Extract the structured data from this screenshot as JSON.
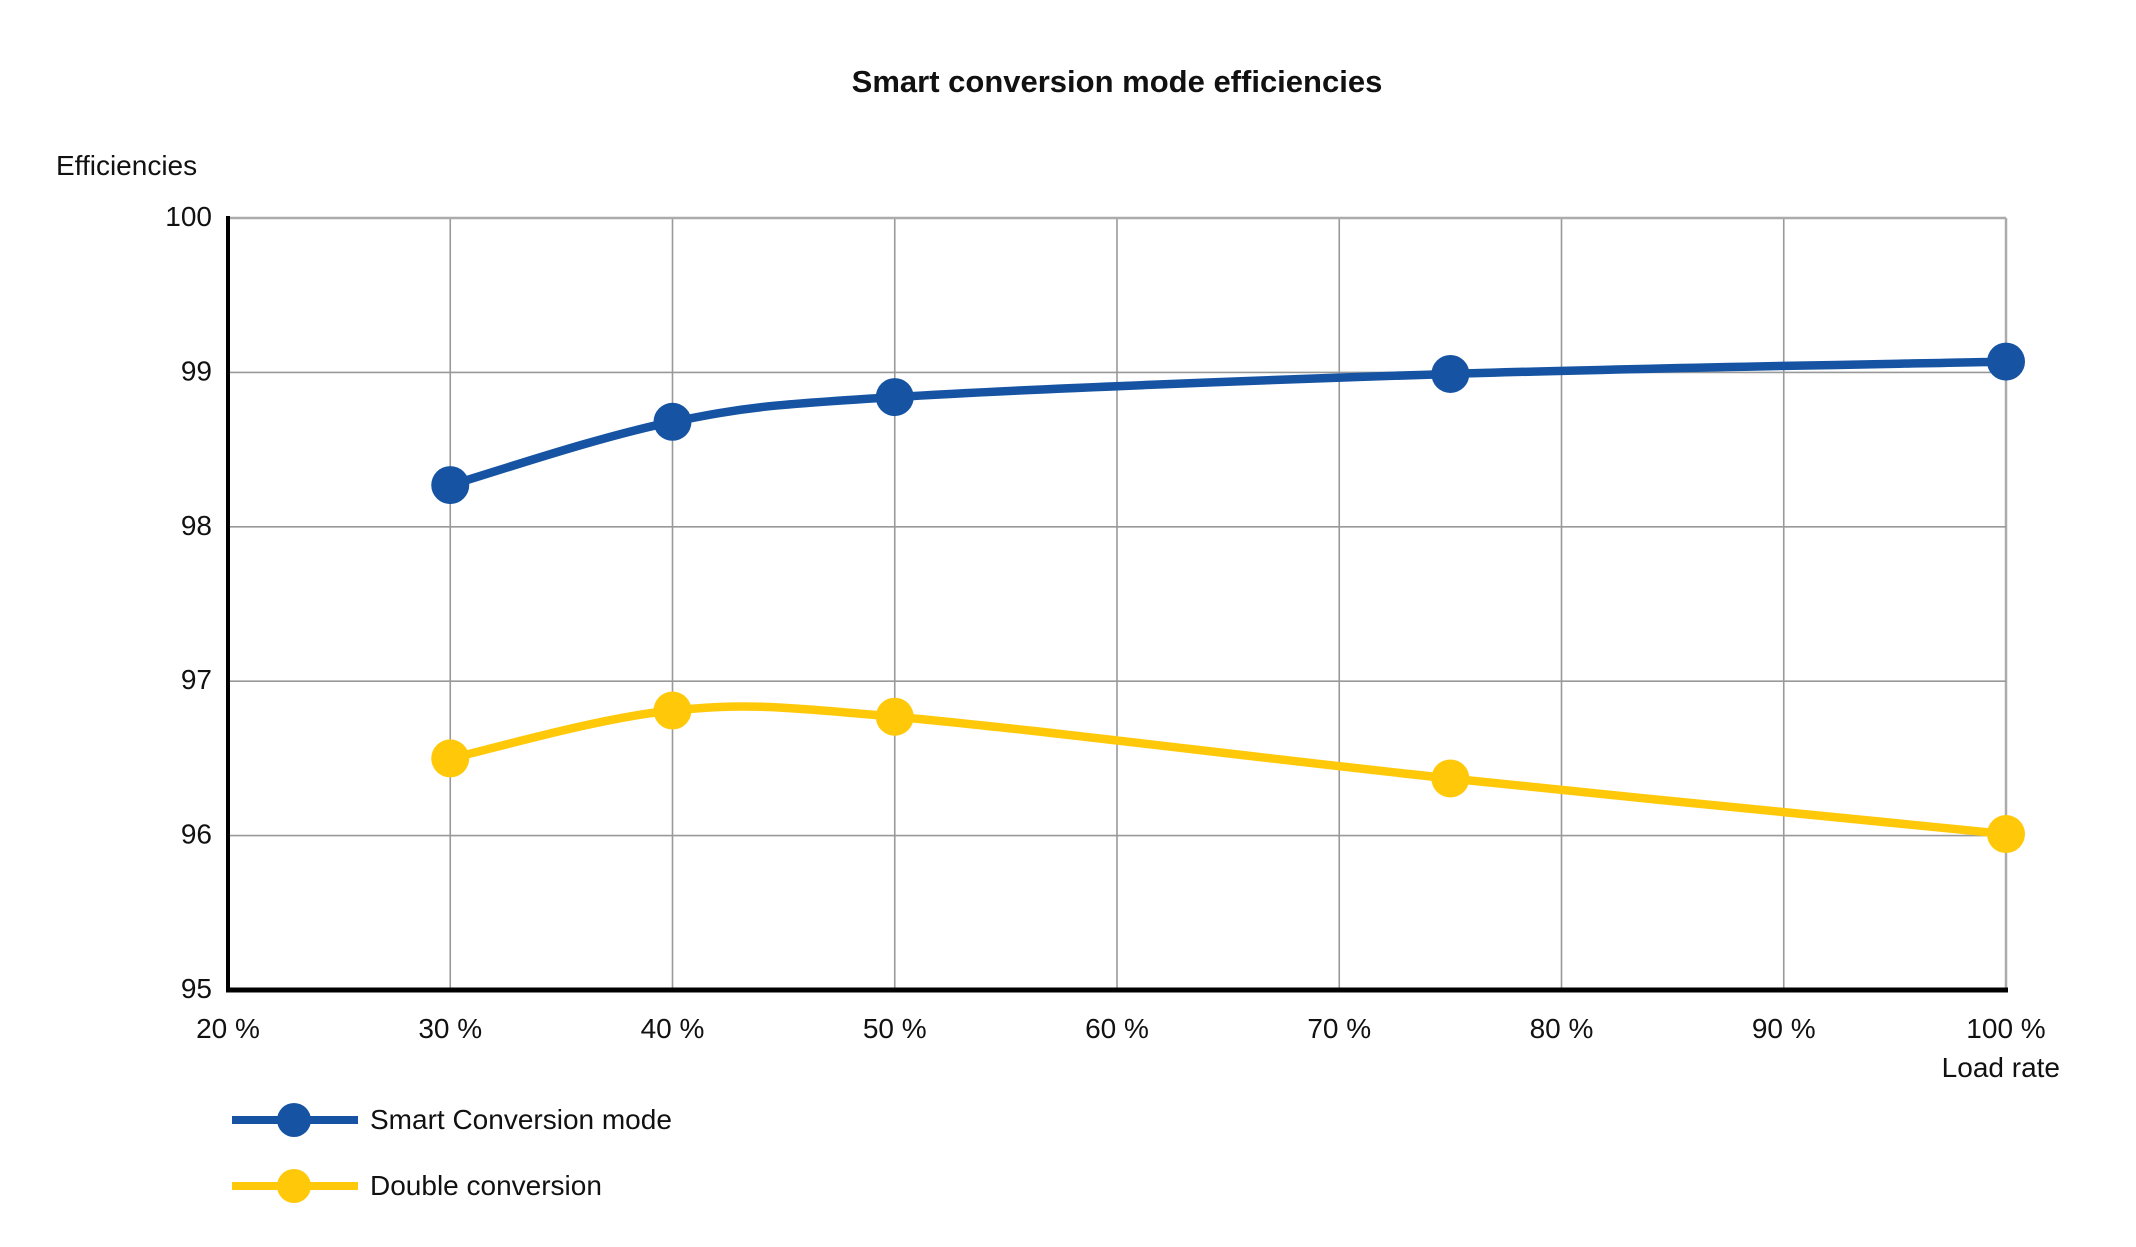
{
  "page": {
    "background": "#ffffff",
    "text_color": "#111111"
  },
  "chart_data": {
    "type": "line",
    "title": "Smart conversion mode efficiencies",
    "y_axis_label": "Efficiencies",
    "x_axis_label": "Load rate",
    "xlim": [
      20,
      100
    ],
    "ylim": [
      95,
      100
    ],
    "x_ticks": [
      20,
      30,
      40,
      50,
      60,
      70,
      80,
      90,
      100
    ],
    "x_tick_labels": [
      "20 %",
      "30 %",
      "40 %",
      "50 %",
      "60 %",
      "70 %",
      "80 %",
      "90 %",
      "100 %"
    ],
    "y_ticks": [
      95,
      96,
      97,
      98,
      99,
      100
    ],
    "y_tick_labels": [
      "95",
      "96",
      "97",
      "98",
      "99",
      "100"
    ],
    "grid": true,
    "legend_position": "bottom-left",
    "x": [
      30,
      40,
      50,
      75,
      100
    ],
    "series": [
      {
        "name": "Smart Conversion mode",
        "color": "#1654A3",
        "values": [
          98.27,
          98.68,
          98.84,
          98.99,
          99.07
        ]
      },
      {
        "name": "Double conversion",
        "color": "#FFC90A",
        "values": [
          96.5,
          96.81,
          96.77,
          96.37,
          96.01
        ]
      }
    ],
    "style": {
      "gridline_color": "#999999",
      "border_color": "#ababab",
      "axis_color": "#000000",
      "line_width": 8.5,
      "marker_radius": 19
    }
  }
}
